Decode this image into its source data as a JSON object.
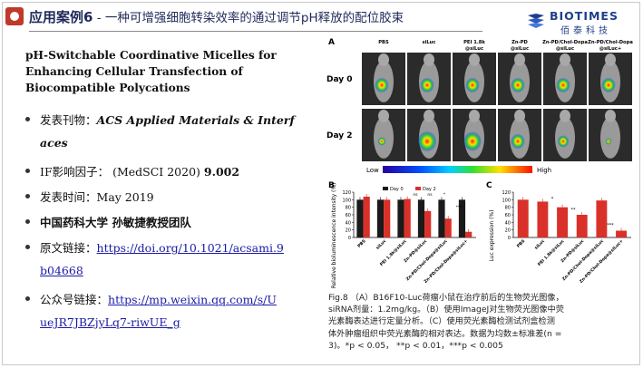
{
  "header": {
    "title_main": "应用案例6",
    "title_sep": " - ",
    "title_sub": "一种可增强细胞转染效率的通过调节pH释放的配位胶束",
    "logo_text": "BIOTIMES",
    "logo_cn": "佰泰科技"
  },
  "paper": {
    "title_lines": [
      "pH-Switchable Coordinative Micelles for",
      "Enhancing Cellular Transfection of",
      "Biocompatible Polycations"
    ]
  },
  "bullets": {
    "journal_label": "发表刊物：",
    "journal_line1": "ACS Applied Materials & Interf",
    "journal_line2": "aces",
    "if_label": "IF影响因子：",
    "if_source": "(MedSCI 2020)",
    "if_value": "9.002",
    "date_label": "发表时间：",
    "date_value": "May 2019",
    "group": "中国药科大学 孙敏捷教授团队",
    "link_label": "原文链接：",
    "link_line1": "https://doi.org/10.1021/acsami.9",
    "link_line2": "b04668",
    "wechat_label": "公众号链接：",
    "wechat_line1": "https://mp.weixin.qq.com/s/U",
    "wechat_line2": "ueJR7JBZjyLq7-riwUE_g"
  },
  "figure": {
    "panel_a": "A",
    "panel_b": "B",
    "panel_c": "C",
    "groups": [
      "PBS",
      "siLuc",
      "PEI 1.8k\n@siLuc",
      "Zn-PD\n@siLuc",
      "Zn-PD/Chol-Dopa\n@siLuc",
      "Zn-PD/Chol-Dopa\n@siLuc+"
    ],
    "row_labels": [
      "Day 0",
      "Day 2"
    ],
    "colorbar_low": "Low",
    "colorbar_high": "High",
    "b_ylabel": "Relative bioluminescence intensity (%)",
    "c_ylabel": "Luc expression (%)",
    "b_legend": [
      "Day 0",
      "Day 2"
    ],
    "b_yticks": [
      "0",
      "20",
      "40",
      "60",
      "80",
      "100",
      "120"
    ],
    "c_yticks": [
      "0",
      "20",
      "40",
      "60",
      "80",
      "100",
      "120"
    ],
    "x_labels": [
      "PBS",
      "siLuc",
      "PEI 1.8k@siLuc",
      "Zn-PD@siLuc",
      "Zn-PD/Chol-Dopa@siLuc",
      "Zn-PD/Chol-Dopa@siLuc+"
    ],
    "sig_b": [
      "ns",
      "ns",
      "*",
      "***"
    ],
    "sig_c": [
      "*",
      "**",
      "***"
    ]
  },
  "chart_data": [
    {
      "type": "bar",
      "title": "B",
      "ylabel": "Relative bioluminescence intensity (%)",
      "ylim": [
        0,
        120
      ],
      "categories": [
        "PBS",
        "siLuc",
        "PEI 1.8k@siLuc",
        "Zn-PD@siLuc",
        "Zn-PD/Chol-Dopa@siLuc",
        "Zn-PD/Chol-Dopa@siLuc+"
      ],
      "series": [
        {
          "name": "Day 0",
          "values": [
            100,
            100,
            100,
            100,
            100,
            100
          ]
        },
        {
          "name": "Day 2",
          "values": [
            108,
            100,
            102,
            70,
            50,
            15
          ]
        }
      ],
      "colors": [
        "#1a1a1a",
        "#d9302a"
      ]
    },
    {
      "type": "bar",
      "title": "C",
      "ylabel": "Luc expression (%)",
      "ylim": [
        0,
        120
      ],
      "categories": [
        "PBS",
        "siLuc",
        "PEI 1.8k@siLuc",
        "Zn-PD@siLuc",
        "Zn-PD/Chol-Dopa@siLuc",
        "Zn-PD/Chol-Dopa@siLuc+"
      ],
      "values": [
        100,
        95,
        80,
        60,
        98,
        18
      ],
      "colors": [
        "#d9302a"
      ]
    }
  ],
  "caption": {
    "lines": [
      "Fig.8 （A）B16F10-Luc荷瘤小鼠在治疗前后的生物荧光图像，",
      "siRNA剂量：1.2mg/kg。（B）使用ImageJ对生物荧光图像中荧",
      "光素酶表达进行定量分析。（C）使用荧光素酶检测试剂盒检测",
      "体外肿瘤组织中荧光素酶的相对表达。数据为均数±标准差(n =",
      "3)。*p < 0.05， **p < 0.01，***p < 0.005"
    ]
  },
  "colors": {
    "title": "#1f2a5a",
    "accent": "#c0392b",
    "link": "#1a1aa6",
    "bar_day0": "#1a1a1a",
    "bar_red": "#d9302a"
  }
}
